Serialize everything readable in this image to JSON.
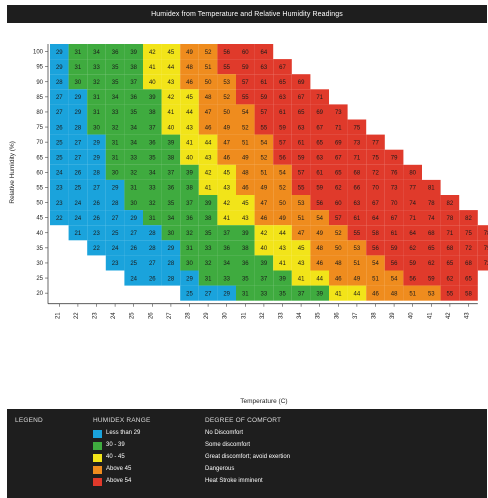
{
  "title": "Humidex from Temperature and Relative Humidity Readings",
  "colors": {
    "band1": "#1aa3dc",
    "band2": "#3fab3f",
    "band3": "#f2e419",
    "band4": "#ef8c1e",
    "band5": "#e03a2b",
    "legend_bg": "#1e1e1e"
  },
  "legend": {
    "heading": "LEGEND",
    "range_heading": "HUMIDEX RANGE",
    "comfort_heading": "DEGREE OF COMFORT",
    "items": [
      {
        "range": "Less than 29",
        "comfort": "No Discomfort",
        "color": "#1aa3dc"
      },
      {
        "range": "30 - 39",
        "comfort": "Some discomfort",
        "color": "#3fab3f"
      },
      {
        "range": "40 - 45",
        "comfort": "Great discomfort; avoid exertion",
        "color": "#f2e419"
      },
      {
        "range": "Above 45",
        "comfort": "Dangerous",
        "color": "#ef8c1e"
      },
      {
        "range": "Above 54",
        "comfort": "Heat Stroke imminent",
        "color": "#e03a2b"
      }
    ]
  },
  "chart_data": {
    "type": "heatmap",
    "title": "Humidex from Temperature and Relative Humidity Readings",
    "xlabel": "Temperature (C)",
    "ylabel": "Relative Humidity (%)",
    "x": [
      21,
      22,
      23,
      24,
      25,
      26,
      27,
      28,
      29,
      30,
      31,
      32,
      33,
      34,
      35,
      36,
      37,
      38,
      39,
      40,
      41,
      42,
      43
    ],
    "y": [
      100,
      95,
      90,
      85,
      80,
      75,
      70,
      65,
      60,
      55,
      50,
      45,
      40,
      35,
      30,
      25,
      20
    ],
    "start_column_index": [
      0,
      0,
      0,
      0,
      0,
      0,
      0,
      0,
      0,
      0,
      0,
      0,
      1,
      2,
      3,
      4,
      7
    ],
    "values": [
      [
        29,
        31,
        34,
        36,
        39,
        42,
        45,
        49,
        52,
        56,
        60,
        64
      ],
      [
        29,
        31,
        33,
        35,
        38,
        41,
        44,
        48,
        51,
        55,
        59,
        63,
        67
      ],
      [
        28,
        30,
        32,
        35,
        37,
        40,
        43,
        46,
        50,
        53,
        57,
        61,
        65,
        69
      ],
      [
        27,
        29,
        31,
        34,
        36,
        39,
        42,
        45,
        48,
        52,
        55,
        59,
        63,
        67,
        71
      ],
      [
        27,
        29,
        31,
        33,
        35,
        38,
        41,
        44,
        47,
        50,
        54,
        57,
        61,
        65,
        69,
        73
      ],
      [
        26,
        28,
        30,
        32,
        34,
        37,
        40,
        43,
        46,
        49,
        52,
        55,
        59,
        63,
        67,
        71,
        75
      ],
      [
        25,
        27,
        29,
        31,
        34,
        36,
        39,
        41,
        44,
        47,
        51,
        54,
        57,
        61,
        65,
        69,
        73,
        77
      ],
      [
        25,
        27,
        29,
        31,
        33,
        35,
        38,
        40,
        43,
        46,
        49,
        52,
        56,
        59,
        63,
        67,
        71,
        75,
        79
      ],
      [
        24,
        26,
        28,
        30,
        32,
        34,
        37,
        39,
        42,
        45,
        48,
        51,
        54,
        57,
        61,
        65,
        68,
        72,
        76,
        80
      ],
      [
        23,
        25,
        27,
        29,
        31,
        33,
        36,
        38,
        41,
        43,
        46,
        49,
        52,
        55,
        59,
        62,
        66,
        70,
        73,
        77,
        81
      ],
      [
        23,
        24,
        26,
        28,
        30,
        32,
        35,
        37,
        39,
        42,
        45,
        47,
        50,
        53,
        56,
        60,
        63,
        67,
        70,
        74,
        78,
        82
      ],
      [
        22,
        24,
        26,
        27,
        29,
        31,
        34,
        36,
        38,
        41,
        43,
        46,
        49,
        51,
        54,
        57,
        61,
        64,
        67,
        71,
        74,
        78,
        82
      ],
      [
        21,
        23,
        25,
        27,
        28,
        30,
        32,
        35,
        37,
        39,
        42,
        44,
        47,
        49,
        52,
        55,
        58,
        61,
        64,
        68,
        71,
        75,
        78
      ],
      [
        22,
        24,
        26,
        28,
        29,
        31,
        33,
        36,
        38,
        40,
        43,
        45,
        48,
        50,
        53,
        56,
        59,
        62,
        65,
        68,
        72,
        75
      ],
      [
        23,
        25,
        27,
        28,
        30,
        32,
        34,
        36,
        39,
        41,
        43,
        46,
        48,
        51,
        54,
        56,
        59,
        62,
        65,
        68,
        72
      ],
      [
        24,
        26,
        28,
        29,
        31,
        33,
        35,
        37,
        39,
        41,
        44,
        46,
        49,
        51,
        54,
        56,
        59,
        62,
        65
      ],
      [
        25,
        27,
        29,
        31,
        33,
        35,
        37,
        39,
        41,
        44,
        46,
        48,
        51,
        53,
        55,
        58
      ]
    ]
  }
}
